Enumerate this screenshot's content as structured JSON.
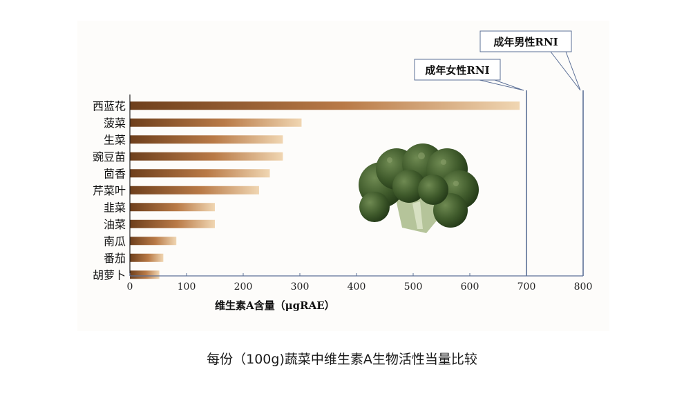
{
  "chart_data": {
    "type": "bar",
    "orientation": "horizontal",
    "categories": [
      "西蓝花",
      "菠菜",
      "生菜",
      "豌豆苗",
      "茴香",
      "芹菜叶",
      "韭菜",
      "油菜",
      "南瓜",
      "番茄",
      "胡萝卜"
    ],
    "values": [
      688,
      303,
      270,
      270,
      247,
      228,
      150,
      150,
      82,
      59,
      52
    ],
    "xlabel": "维生素A含量（μgRAE）",
    "ylabel": "",
    "xlim": [
      0,
      800
    ],
    "xticks": [
      0,
      100,
      200,
      300,
      400,
      500,
      600,
      700,
      800
    ],
    "grid": false,
    "reference_lines": [
      {
        "value": 700,
        "label": "成年女性RNI"
      },
      {
        "value": 800,
        "label": "成年男性RNI"
      }
    ],
    "bar_gradient": [
      "#6e3f1c",
      "#b97a47",
      "#f0d6b2"
    ],
    "axis_color": "#5b6f96"
  },
  "image": {
    "icon": "broccoli-icon"
  },
  "caption": "每份（100g)蔬菜中维生素A生物活性当量比较"
}
